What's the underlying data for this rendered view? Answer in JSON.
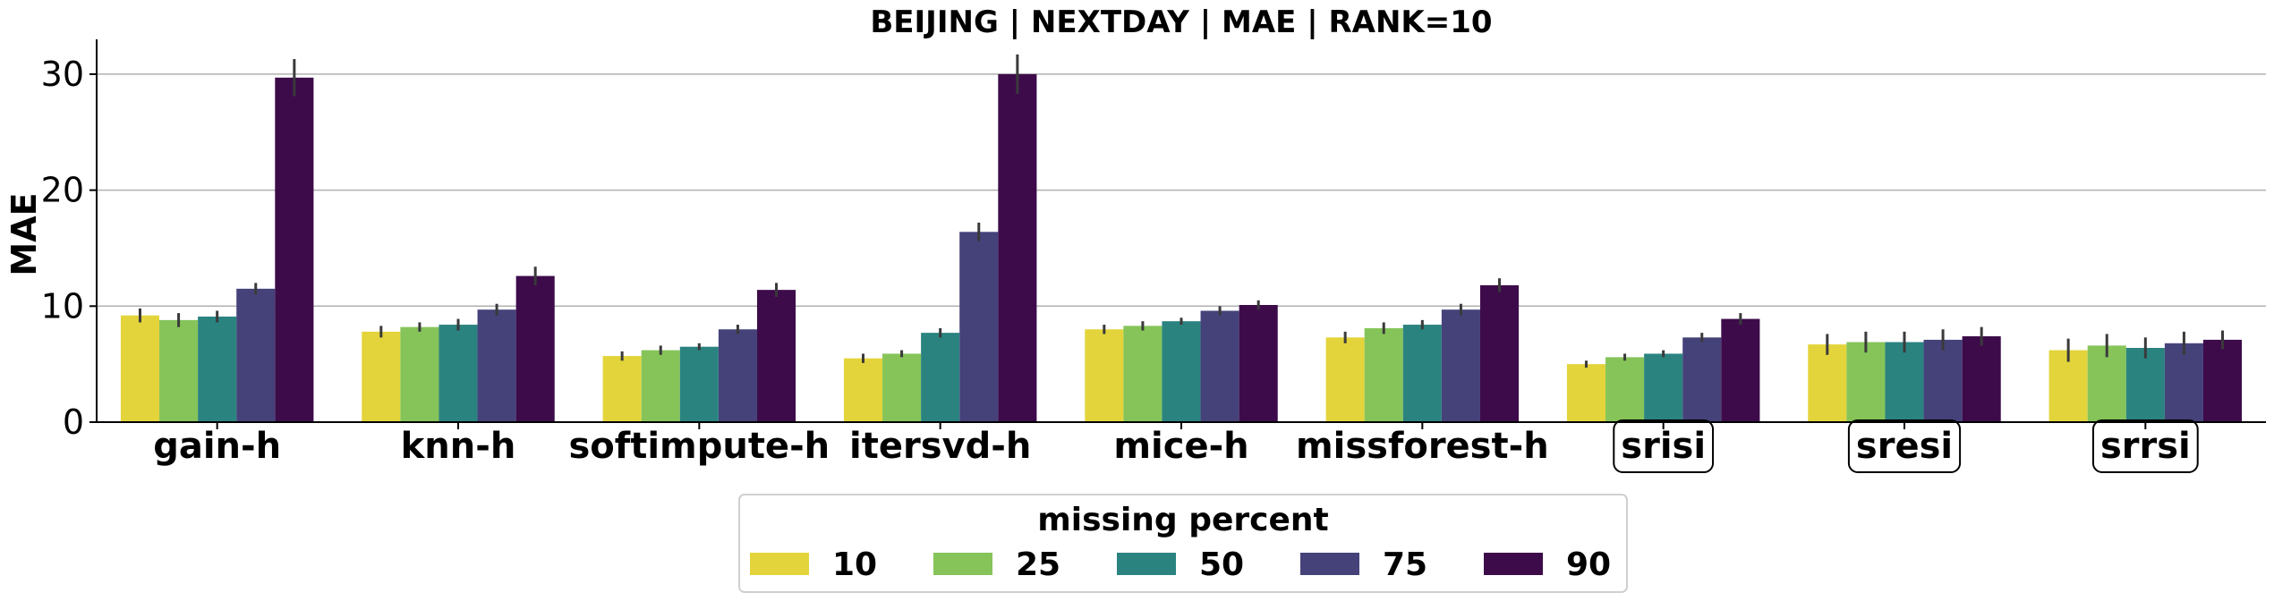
{
  "chart_data": {
    "type": "bar",
    "title": "BEIJING | NEXTDAY | MAE | RANK=10",
    "ylabel": "MAE",
    "xlabel": "",
    "ylim": [
      0,
      33
    ],
    "yticks": [
      0,
      10,
      20,
      30
    ],
    "grid": "horizontal",
    "categories": [
      "gain-h",
      "knn-h",
      "softimpute-h",
      "itersvd-h",
      "mice-h",
      "missforest-h",
      "srisi",
      "sresi",
      "srrsi"
    ],
    "boxed_categories": [
      "srisi",
      "sresi",
      "srrsi"
    ],
    "legend": {
      "title": "missing percent",
      "placement": "bottom-center"
    },
    "series": [
      {
        "name": "10",
        "color": "#e3d43b",
        "values": [
          9.2,
          7.8,
          5.7,
          5.5,
          8.0,
          7.3,
          5.0,
          6.7,
          6.2
        ],
        "errors": [
          0.6,
          0.5,
          0.4,
          0.4,
          0.4,
          0.5,
          0.3,
          0.9,
          1.0
        ]
      },
      {
        "name": "25",
        "color": "#86c45a",
        "values": [
          8.8,
          8.2,
          6.2,
          5.9,
          8.3,
          8.1,
          5.6,
          6.9,
          6.6
        ],
        "errors": [
          0.6,
          0.4,
          0.4,
          0.3,
          0.4,
          0.5,
          0.3,
          0.9,
          1.0
        ]
      },
      {
        "name": "50",
        "color": "#2b8380",
        "values": [
          9.1,
          8.4,
          6.5,
          7.7,
          8.7,
          8.4,
          5.9,
          6.9,
          6.4
        ],
        "errors": [
          0.5,
          0.5,
          0.3,
          0.4,
          0.3,
          0.4,
          0.3,
          0.9,
          0.9
        ]
      },
      {
        "name": "75",
        "color": "#45427a",
        "values": [
          11.5,
          9.7,
          8.0,
          16.4,
          9.6,
          9.7,
          7.3,
          7.1,
          6.8
        ],
        "errors": [
          0.5,
          0.5,
          0.4,
          0.8,
          0.4,
          0.5,
          0.4,
          0.9,
          1.0
        ]
      },
      {
        "name": "90",
        "color": "#3d0b4a",
        "values": [
          29.7,
          12.6,
          11.4,
          30.0,
          10.1,
          11.8,
          8.9,
          7.4,
          7.1
        ],
        "errors": [
          1.6,
          0.8,
          0.6,
          1.7,
          0.4,
          0.6,
          0.5,
          0.8,
          0.8
        ]
      }
    ]
  }
}
